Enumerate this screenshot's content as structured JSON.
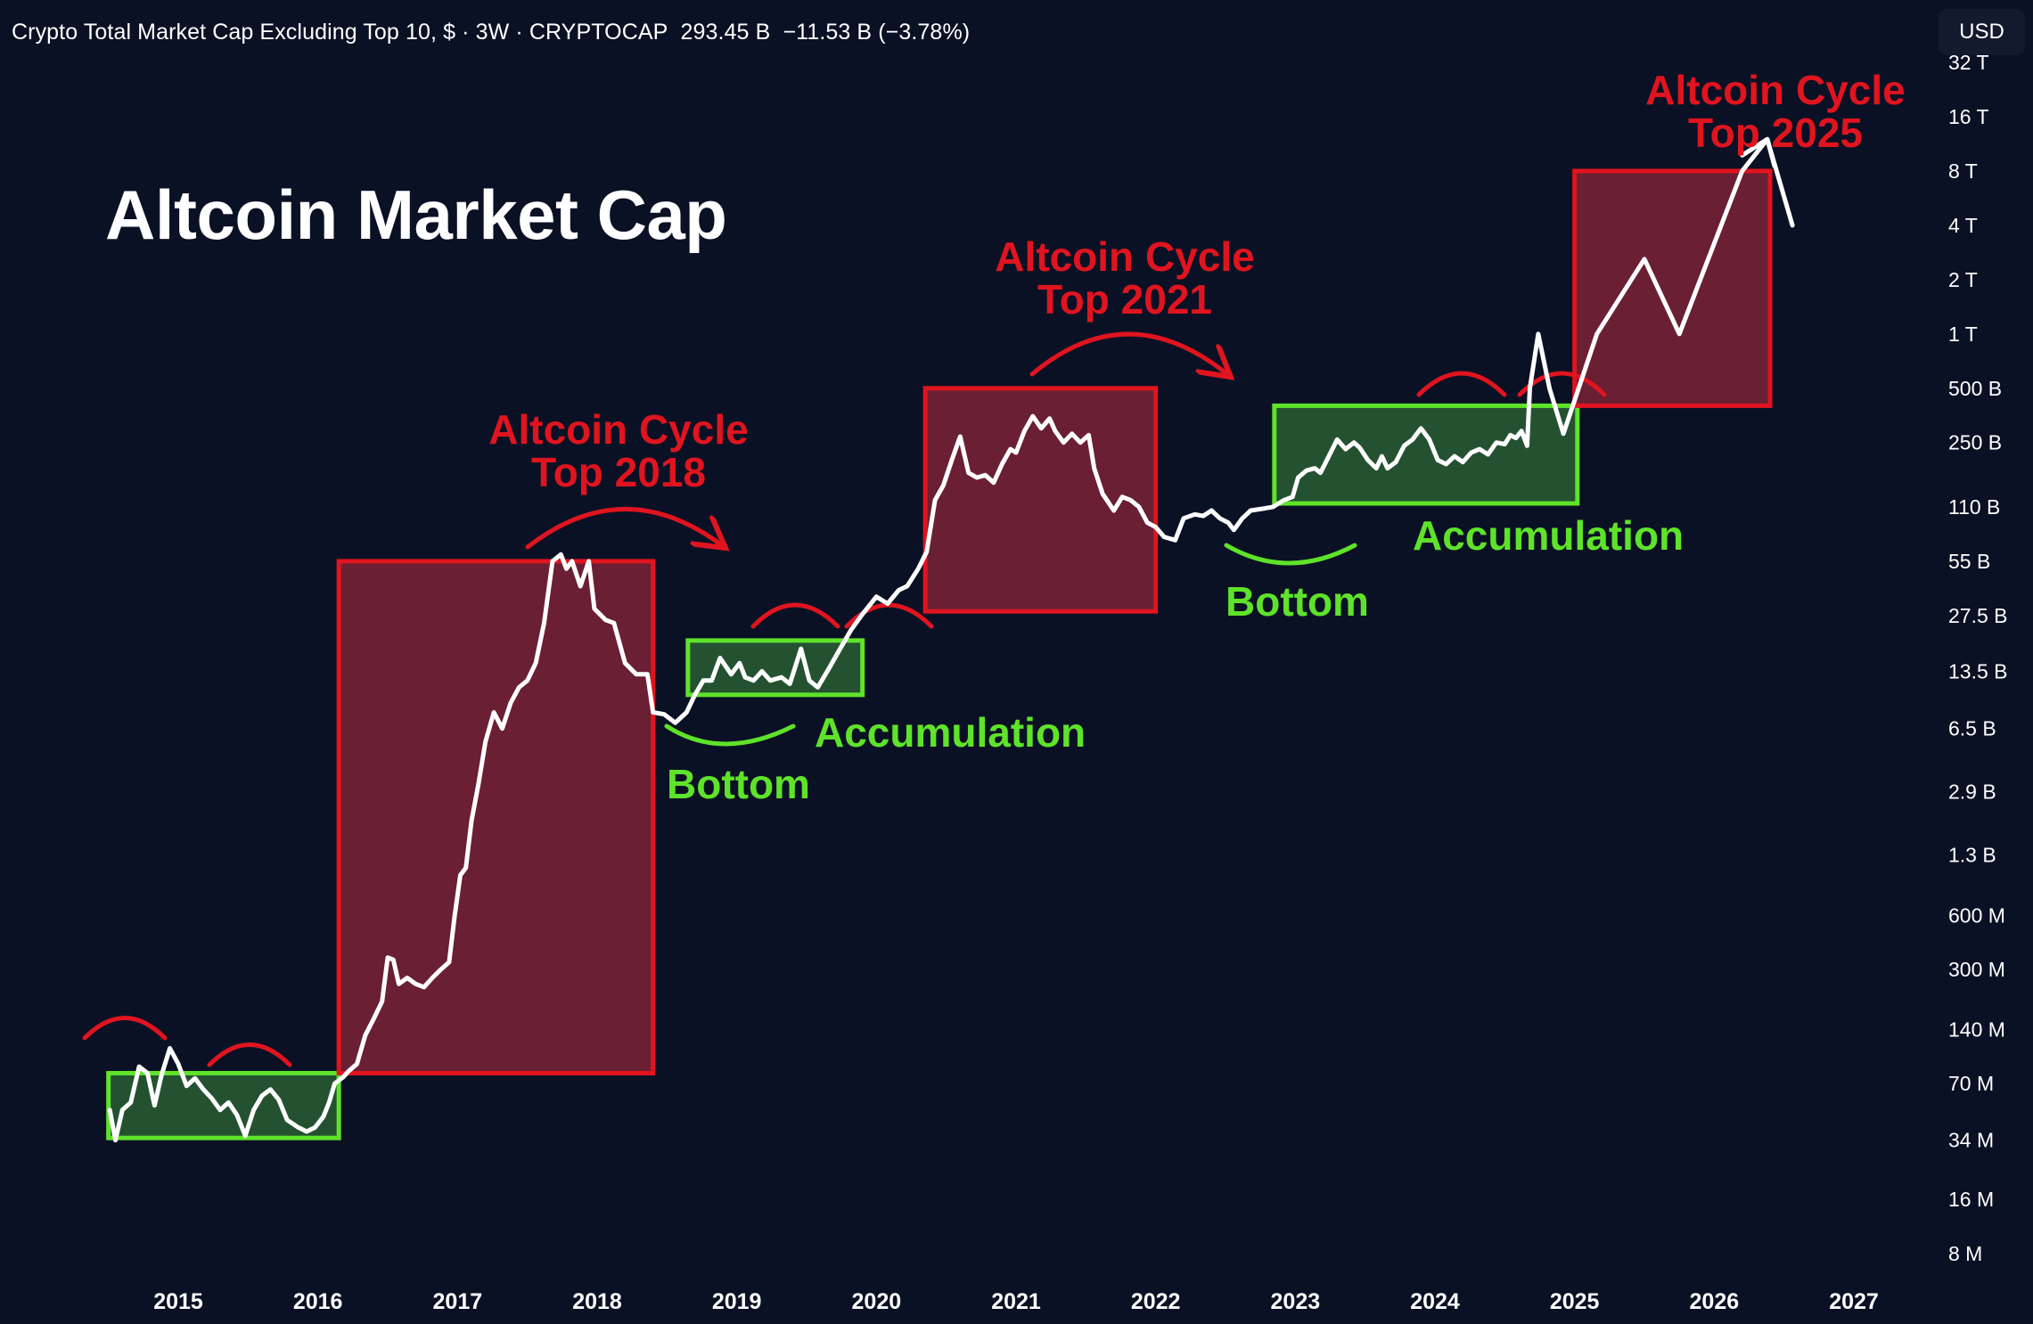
{
  "header": {
    "symbol_text": "Crypto Total Market Cap Excluding Top 10, $ · 3W · CRYPTOCAP",
    "price": "293.45 B",
    "change": "−11.53 B (−3.78%)",
    "currency_button": "USD"
  },
  "colors": {
    "background": "#0b1124",
    "red": "#e0141f",
    "green": "#5ee32a",
    "red_box_fill": "#6a1f33",
    "green_box_fill": "#245231",
    "line": "#ffffff"
  },
  "annotations": {
    "top_2018": [
      "Altcoin Cycle",
      "Top 2018"
    ],
    "top_2021": [
      "Altcoin Cycle",
      "Top 2021"
    ],
    "top_2025": [
      "Altcoin Cycle",
      "Top 2025"
    ],
    "bottom_1": "Bottom",
    "bottom_2": "Bottom",
    "accumulation_1": "Accumulation",
    "accumulation_2": "Accumulation"
  },
  "chart_data": {
    "type": "line",
    "title": "Altcoin Market Cap",
    "scale": "log",
    "xlabel": "",
    "ylabel": "",
    "x_ticks": [
      "2015",
      "2016",
      "2017",
      "2018",
      "2019",
      "2020",
      "2021",
      "2022",
      "2023",
      "2024",
      "2025",
      "2026",
      "2027"
    ],
    "y_ticks": [
      "32 T",
      "16 T",
      "8 T",
      "4 T",
      "2 T",
      "1 T",
      "500 B",
      "250 B",
      "110 B",
      "55 B",
      "27.5 B",
      "13.5 B",
      "6.5 B",
      "2.9 B",
      "1.3 B",
      "600 M",
      "300 M",
      "140 M",
      "70 M",
      "34 M",
      "16 M",
      "8 M"
    ],
    "y_tick_values": [
      32000,
      16000,
      8000,
      4000,
      2000,
      1000,
      500,
      250,
      110,
      55,
      27.5,
      13.5,
      6.5,
      2.9,
      1.3,
      0.6,
      0.3,
      0.14,
      0.07,
      0.034,
      0.016,
      0.008
    ],
    "y_unit": "billion USD",
    "ylim": [
      0.0065,
      32000
    ],
    "xlim": [
      2014.5,
      2027.6
    ],
    "series": [
      {
        "name": "Altcoin Market Cap (excl. top 10)",
        "points": [
          [
            2014.51,
            0.05
          ],
          [
            2014.55,
            0.034
          ],
          [
            2014.6,
            0.05
          ],
          [
            2014.66,
            0.055
          ],
          [
            2014.72,
            0.087
          ],
          [
            2014.78,
            0.08
          ],
          [
            2014.83,
            0.053
          ],
          [
            2014.88,
            0.078
          ],
          [
            2014.94,
            0.11
          ],
          [
            2015.0,
            0.09
          ],
          [
            2015.06,
            0.068
          ],
          [
            2015.12,
            0.075
          ],
          [
            2015.18,
            0.065
          ],
          [
            2015.24,
            0.058
          ],
          [
            2015.3,
            0.05
          ],
          [
            2015.36,
            0.055
          ],
          [
            2015.42,
            0.047
          ],
          [
            2015.48,
            0.036
          ],
          [
            2015.54,
            0.05
          ],
          [
            2015.6,
            0.06
          ],
          [
            2015.66,
            0.065
          ],
          [
            2015.72,
            0.057
          ],
          [
            2015.78,
            0.044
          ],
          [
            2015.86,
            0.04
          ],
          [
            2015.92,
            0.038
          ],
          [
            2015.98,
            0.04
          ],
          [
            2016.04,
            0.046
          ],
          [
            2016.08,
            0.055
          ],
          [
            2016.12,
            0.07
          ],
          [
            2016.18,
            0.076
          ],
          [
            2016.22,
            0.082
          ],
          [
            2016.28,
            0.09
          ],
          [
            2016.34,
            0.13
          ],
          [
            2016.4,
            0.16
          ],
          [
            2016.46,
            0.2
          ],
          [
            2016.5,
            0.35
          ],
          [
            2016.54,
            0.34
          ],
          [
            2016.58,
            0.25
          ],
          [
            2016.64,
            0.27
          ],
          [
            2016.7,
            0.25
          ],
          [
            2016.76,
            0.24
          ],
          [
            2016.82,
            0.27
          ],
          [
            2016.88,
            0.3
          ],
          [
            2016.94,
            0.33
          ],
          [
            2016.98,
            0.6
          ],
          [
            2017.02,
            1.0
          ],
          [
            2017.06,
            1.1
          ],
          [
            2017.1,
            2.0
          ],
          [
            2017.15,
            3.2
          ],
          [
            2017.2,
            5.5
          ],
          [
            2017.26,
            8.0
          ],
          [
            2017.32,
            6.5
          ],
          [
            2017.38,
            9.0
          ],
          [
            2017.44,
            11.0
          ],
          [
            2017.5,
            12.0
          ],
          [
            2017.56,
            15.0
          ],
          [
            2017.62,
            25.0
          ],
          [
            2017.68,
            55.0
          ],
          [
            2017.74,
            60.0
          ],
          [
            2017.78,
            50.0
          ],
          [
            2017.82,
            55.0
          ],
          [
            2017.88,
            40.0
          ],
          [
            2017.94,
            55.0
          ],
          [
            2017.98,
            30.0
          ],
          [
            2018.06,
            26.0
          ],
          [
            2018.12,
            25.0
          ],
          [
            2018.2,
            15.0
          ],
          [
            2018.28,
            13.0
          ],
          [
            2018.36,
            13.0
          ],
          [
            2018.4,
            8.0
          ],
          [
            2018.48,
            7.8
          ],
          [
            2018.56,
            7.0
          ],
          [
            2018.64,
            8.0
          ],
          [
            2018.7,
            10.0
          ],
          [
            2018.76,
            12.0
          ],
          [
            2018.82,
            12.0
          ],
          [
            2018.88,
            16.0
          ],
          [
            2018.96,
            13.0
          ],
          [
            2019.02,
            15.0
          ],
          [
            2019.06,
            12.5
          ],
          [
            2019.12,
            12.0
          ],
          [
            2019.18,
            13.5
          ],
          [
            2019.24,
            12.0
          ],
          [
            2019.32,
            12.5
          ],
          [
            2019.38,
            11.5
          ],
          [
            2019.46,
            18.0
          ],
          [
            2019.52,
            12.0
          ],
          [
            2019.58,
            11.0
          ],
          [
            2019.66,
            14.0
          ],
          [
            2019.74,
            18.0
          ],
          [
            2019.82,
            23.0
          ],
          [
            2019.9,
            28.0
          ],
          [
            2020.0,
            35.0
          ],
          [
            2020.08,
            32.0
          ],
          [
            2020.16,
            38.0
          ],
          [
            2020.22,
            40.0
          ],
          [
            2020.3,
            50.0
          ],
          [
            2020.36,
            62.0
          ],
          [
            2020.42,
            120.0
          ],
          [
            2020.48,
            145.0
          ],
          [
            2020.54,
            200.0
          ],
          [
            2020.6,
            270.0
          ],
          [
            2020.66,
            170.0
          ],
          [
            2020.72,
            160.0
          ],
          [
            2020.78,
            165.0
          ],
          [
            2020.84,
            150.0
          ],
          [
            2020.9,
            190.0
          ],
          [
            2020.96,
            230.0
          ],
          [
            2021.0,
            220.0
          ],
          [
            2021.06,
            290.0
          ],
          [
            2021.12,
            350.0
          ],
          [
            2021.18,
            300.0
          ],
          [
            2021.24,
            340.0
          ],
          [
            2021.28,
            290.0
          ],
          [
            2021.34,
            250.0
          ],
          [
            2021.4,
            280.0
          ],
          [
            2021.46,
            250.0
          ],
          [
            2021.52,
            275.0
          ],
          [
            2021.56,
            180.0
          ],
          [
            2021.62,
            130.0
          ],
          [
            2021.7,
            105.0
          ],
          [
            2021.76,
            125.0
          ],
          [
            2021.82,
            120.0
          ],
          [
            2021.88,
            110.0
          ],
          [
            2021.94,
            90.0
          ],
          [
            2022.0,
            85.0
          ],
          [
            2022.06,
            75.0
          ],
          [
            2022.14,
            72.0
          ],
          [
            2022.2,
            95.0
          ],
          [
            2022.28,
            100.0
          ],
          [
            2022.34,
            98.0
          ],
          [
            2022.4,
            105.0
          ],
          [
            2022.46,
            95.0
          ],
          [
            2022.52,
            90.0
          ],
          [
            2022.56,
            82.0
          ],
          [
            2022.62,
            95.0
          ],
          [
            2022.68,
            105.0
          ],
          [
            2022.78,
            108.0
          ],
          [
            2022.84,
            110.0
          ],
          [
            2022.92,
            120.0
          ],
          [
            2022.98,
            125.0
          ],
          [
            2023.02,
            160.0
          ],
          [
            2023.08,
            175.0
          ],
          [
            2023.14,
            180.0
          ],
          [
            2023.18,
            170.0
          ],
          [
            2023.24,
            210.0
          ],
          [
            2023.3,
            260.0
          ],
          [
            2023.36,
            230.0
          ],
          [
            2023.42,
            250.0
          ],
          [
            2023.46,
            235.0
          ],
          [
            2023.52,
            200.0
          ],
          [
            2023.58,
            180.0
          ],
          [
            2023.62,
            210.0
          ],
          [
            2023.66,
            180.0
          ],
          [
            2023.72,
            195.0
          ],
          [
            2023.78,
            240.0
          ],
          [
            2023.84,
            260.0
          ],
          [
            2023.9,
            300.0
          ],
          [
            2023.96,
            260.0
          ],
          [
            2024.02,
            200.0
          ],
          [
            2024.08,
            190.0
          ],
          [
            2024.14,
            210.0
          ],
          [
            2024.2,
            195.0
          ],
          [
            2024.26,
            220.0
          ],
          [
            2024.32,
            230.0
          ],
          [
            2024.38,
            215.0
          ],
          [
            2024.44,
            250.0
          ],
          [
            2024.5,
            245.0
          ],
          [
            2024.54,
            275.0
          ],
          [
            2024.58,
            265.0
          ],
          [
            2024.62,
            290.0
          ],
          [
            2024.66,
            240.0
          ],
          [
            2024.68,
            500.0
          ],
          [
            2024.74,
            1000.0
          ],
          [
            2024.82,
            500.0
          ],
          [
            2024.92,
            280.0
          ],
          [
            2025.16,
            1000.0
          ],
          [
            2025.5,
            2600.0
          ],
          [
            2025.75,
            1000.0
          ],
          [
            2026.2,
            8000.0
          ],
          [
            2026.38,
            12000.0
          ],
          [
            2026.56,
            4000.0
          ]
        ]
      }
    ],
    "zones": [
      {
        "label": "Accumulation",
        "kind": "accumulation",
        "x": [
          2014.5,
          2016.15
        ],
        "y": [
          0.035,
          0.08
        ]
      },
      {
        "label": "Altcoin Cycle Top 2018",
        "kind": "top",
        "x": [
          2016.15,
          2018.4
        ],
        "y": [
          0.08,
          55.0
        ]
      },
      {
        "label": "Accumulation",
        "kind": "accumulation",
        "x": [
          2018.65,
          2019.9
        ],
        "y": [
          10.0,
          20.0
        ]
      },
      {
        "label": "Altcoin Cycle Top 2021",
        "kind": "top",
        "x": [
          2020.35,
          2022.0
        ],
        "y": [
          29.0,
          500.0
        ]
      },
      {
        "label": "Accumulation",
        "kind": "accumulation",
        "x": [
          2022.85,
          2025.02
        ],
        "y": [
          115.0,
          400.0
        ]
      },
      {
        "label": "Altcoin Cycle Top 2025",
        "kind": "top",
        "x": [
          2025.0,
          2026.4
        ],
        "y": [
          400.0,
          8000.0
        ]
      }
    ]
  }
}
